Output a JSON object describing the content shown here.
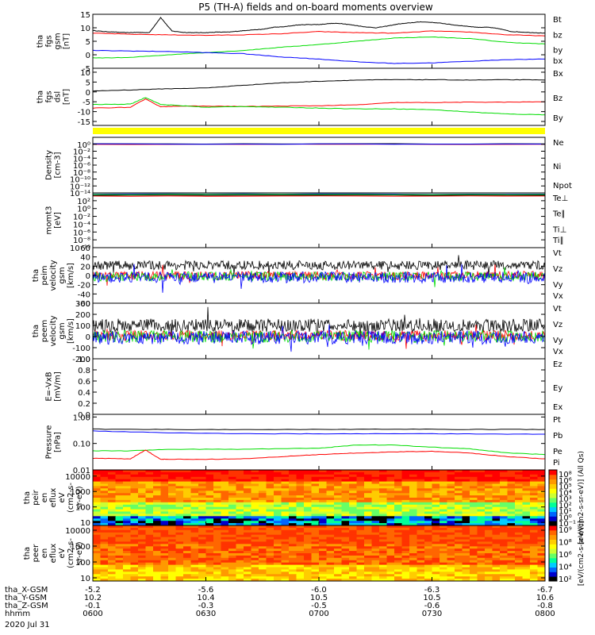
{
  "chart_data": {
    "type": "line",
    "title": "P5 (TH-A) fields and on-board moments overview",
    "colors": {
      "black": "#000000",
      "red": "#ff0000",
      "green": "#00dd00",
      "blue": "#0000ff",
      "yellow": "#ffff00"
    },
    "panels": [
      {
        "id": "fgs_gsm",
        "ylabel": [
          "tha",
          "fgs",
          "gsm",
          "[nT]"
        ],
        "ylim": [
          -5,
          15
        ],
        "yticks": [
          "15",
          "10",
          "5",
          "0",
          "-5"
        ],
        "ytick_values": [
          15,
          10,
          5,
          0,
          -5
        ],
        "legend": [
          {
            "name": "Bt",
            "color": "black"
          },
          {
            "name": "bz",
            "color": "red"
          },
          {
            "name": "by",
            "color": "green"
          },
          {
            "name": "bx",
            "color": "blue"
          }
        ],
        "series": [
          {
            "name": "Bt",
            "color": "black",
            "x": [
              0,
              3,
              6,
              9,
              12,
              15,
              18,
              21,
              24,
              27,
              30,
              33,
              36,
              39,
              42,
              45,
              48,
              51,
              54,
              57,
              60,
              63,
              66,
              69,
              72,
              75,
              78,
              81,
              84,
              87,
              90,
              93,
              96,
              99,
              102,
              105,
              108,
              111,
              114,
              117,
              120
            ],
            "values": [
              9,
              8.6,
              8.4,
              8.2,
              8.3,
              8.2,
              13.8,
              8.8,
              8.3,
              8.2,
              8.2,
              8.4,
              8.4,
              8.8,
              9.2,
              9.4,
              10.2,
              10.4,
              11,
              11.2,
              11.2,
              11.6,
              11.6,
              11,
              10.4,
              10,
              10.6,
              11.4,
              11.8,
              12.2,
              12,
              11.6,
              11,
              10.6,
              10.2,
              10.2,
              9.6,
              8.6,
              8.4,
              8.2,
              8
            ]
          },
          {
            "name": "bz",
            "color": "red",
            "x": [
              0,
              10,
              20,
              30,
              40,
              50,
              60,
              70,
              80,
              90,
              100,
              110,
              120
            ],
            "values": [
              8,
              7.6,
              7.4,
              7.2,
              7.4,
              7.8,
              8.6,
              8.2,
              8,
              8.8,
              8.4,
              7.4,
              7
            ]
          },
          {
            "name": "by",
            "color": "green",
            "x": [
              0,
              10,
              20,
              30,
              40,
              50,
              60,
              70,
              80,
              90,
              100,
              110,
              120
            ],
            "values": [
              -1.2,
              -1,
              0,
              0.8,
              1.6,
              2.8,
              3.8,
              5,
              6.2,
              6.6,
              6,
              4.6,
              4
            ]
          },
          {
            "name": "bx",
            "color": "blue",
            "x": [
              0,
              10,
              20,
              30,
              40,
              50,
              60,
              70,
              80,
              90,
              100,
              110,
              120
            ],
            "values": [
              1.6,
              1.4,
              1.2,
              0.8,
              0.4,
              -0.8,
              -1.6,
              -2.6,
              -3.2,
              -3,
              -2.4,
              -1.8,
              -1.6
            ]
          }
        ]
      },
      {
        "id": "fgs_dsl",
        "ylabel": [
          "tha",
          "fgs",
          "dsl",
          "[nT]"
        ],
        "ylim": [
          -17,
          12
        ],
        "yticks": [
          "10",
          "5",
          "0",
          "-5",
          "-10",
          "-15"
        ],
        "ytick_values": [
          10,
          5,
          0,
          -5,
          -10,
          -15
        ],
        "legend": [
          {
            "name": "Bx",
            "color": "black"
          },
          {
            "name": "Bz",
            "color": "red"
          },
          {
            "name": "By",
            "color": "green"
          }
        ],
        "series": [
          {
            "name": "Bx",
            "color": "black",
            "x": [
              0,
              10,
              20,
              30,
              40,
              50,
              60,
              70,
              80,
              90,
              100,
              110,
              120
            ],
            "values": [
              0.5,
              1,
              1.6,
              2,
              3.4,
              4.6,
              5.4,
              6,
              6.2,
              6.2,
              6,
              6.2,
              6
            ]
          },
          {
            "name": "Bz",
            "color": "red",
            "x": [
              0,
              10,
              14,
              18,
              22,
              30,
              40,
              50,
              60,
              70,
              80,
              90,
              100,
              110,
              120
            ],
            "values": [
              -8.2,
              -7.8,
              -3.5,
              -7.6,
              -7.2,
              -7.2,
              -7.4,
              -7.2,
              -7,
              -6.6,
              -5.4,
              -5.4,
              -5.2,
              -5.2,
              -5
            ]
          },
          {
            "name": "By",
            "color": "green",
            "x": [
              0,
              10,
              14,
              18,
              22,
              30,
              40,
              50,
              60,
              70,
              80,
              90,
              100,
              110,
              120
            ],
            "values": [
              -6.4,
              -6.2,
              -2.8,
              -6.4,
              -6.8,
              -7.8,
              -7.4,
              -7.8,
              -8.2,
              -8.6,
              -8.6,
              -9,
              -10.2,
              -11.2,
              -11.6
            ]
          }
        ]
      },
      {
        "id": "density",
        "ylabel": [
          "Density",
          "[cm-3]"
        ],
        "ylim": [
          -14,
          2
        ],
        "log": true,
        "yticks": [
          "10⁰",
          "10⁻²",
          "10⁻⁴",
          "10⁻⁶",
          "10⁻⁸",
          "10⁻¹⁰",
          "10⁻¹²",
          "10⁻¹⁴"
        ],
        "ytick_values": [
          0,
          -2,
          -4,
          -6,
          -8,
          -10,
          -12,
          -14
        ],
        "legend": [
          {
            "name": "Ne",
            "color": "red"
          },
          {
            "name": "Ni",
            "color": "black"
          },
          {
            "name": "Npot",
            "color": "blue"
          }
        ],
        "series": [
          {
            "name": "Ne",
            "color": "red",
            "x": [
              0,
              120
            ],
            "values": [
              0,
              0
            ]
          },
          {
            "name": "Ni",
            "color": "black",
            "x": [
              0,
              120
            ],
            "values": [
              0.1,
              0.1
            ]
          },
          {
            "name": "Npot",
            "color": "blue",
            "x": [
              0,
              120
            ],
            "values": [
              0.05,
              0.05
            ]
          }
        ]
      },
      {
        "id": "momt3",
        "ylabel": [
          "momt3",
          "[eV]"
        ],
        "ylim": [
          -10,
          4
        ],
        "log": true,
        "yticks": [
          "10²",
          "10⁰",
          "10⁻²",
          "10⁻⁴",
          "10⁻⁶",
          "10⁻⁸",
          "10⁻¹⁰"
        ],
        "ytick_values": [
          2,
          0,
          -2,
          -4,
          -6,
          -8,
          -10
        ],
        "legend": [
          {
            "name": "Te⊥",
            "color": "red"
          },
          {
            "name": "Te∥",
            "color": "black"
          },
          {
            "name": "Ti⊥",
            "color": "blue"
          },
          {
            "name": "Ti∥",
            "color": "green"
          }
        ],
        "series": [
          {
            "name": "Te⊥",
            "color": "red",
            "x": [
              0,
              120
            ],
            "values": [
              3.2,
              3.2
            ]
          },
          {
            "name": "Te∥",
            "color": "black",
            "x": [
              0,
              120
            ],
            "values": [
              3.4,
              3.4
            ]
          },
          {
            "name": "Ti⊥",
            "color": "blue",
            "x": [
              0,
              120
            ],
            "values": [
              3.7,
              3.7
            ]
          },
          {
            "name": "Ti∥",
            "color": "green",
            "x": [
              0,
              120
            ],
            "values": [
              3.6,
              3.6
            ]
          }
        ]
      },
      {
        "id": "peim_vel",
        "ylabel": [
          "tha",
          "peim",
          "velocity",
          "gsm",
          "[km/s]"
        ],
        "ylim": [
          -60,
          60
        ],
        "yticks": [
          "60",
          "40",
          "20",
          "0",
          "-20",
          "-40",
          "-60"
        ],
        "ytick_values": [
          60,
          40,
          20,
          0,
          -20,
          -40,
          -60
        ],
        "legend": [
          {
            "name": "Vt",
            "color": "black"
          },
          {
            "name": "Vz",
            "color": "red"
          },
          {
            "name": "Vy",
            "color": "green"
          },
          {
            "name": "Vx",
            "color": "blue"
          }
        ],
        "noise": [
          {
            "name": "Vt",
            "color": "black",
            "center": 22,
            "amp": 10
          },
          {
            "name": "Vz",
            "color": "red",
            "center": 0,
            "amp": 9
          },
          {
            "name": "Vy",
            "color": "green",
            "center": -2,
            "amp": 10
          },
          {
            "name": "Vx",
            "color": "blue",
            "center": -4,
            "amp": 12
          }
        ]
      },
      {
        "id": "peem_vel",
        "ylabel": [
          "tha",
          "peem",
          "velocity",
          "gsm",
          "[km/s]"
        ],
        "ylim": [
          -200,
          300
        ],
        "yticks": [
          "300",
          "200",
          "100",
          "0",
          "-100",
          "-200"
        ],
        "ytick_values": [
          300,
          200,
          100,
          0,
          -100,
          -200
        ],
        "legend": [
          {
            "name": "Vt",
            "color": "black"
          },
          {
            "name": "Vz",
            "color": "red"
          },
          {
            "name": "Vy",
            "color": "green"
          },
          {
            "name": "Vx",
            "color": "blue"
          }
        ],
        "noise": [
          {
            "name": "Vt",
            "color": "black",
            "center": 100,
            "amp": 60
          },
          {
            "name": "Vz",
            "color": "red",
            "center": 10,
            "amp": 45
          },
          {
            "name": "Vy",
            "color": "green",
            "center": 0,
            "amp": 55
          },
          {
            "name": "Vx",
            "color": "blue",
            "center": -10,
            "amp": 60
          }
        ]
      },
      {
        "id": "efield",
        "ylabel": [
          "E=-VxB",
          "[mV/m]"
        ],
        "ylim": [
          0,
          1
        ],
        "yticks": [
          "1.0",
          "0.8",
          "0.6",
          "0.4",
          "0.2",
          "0.0"
        ],
        "ytick_values": [
          1,
          0.8,
          0.6,
          0.4,
          0.2,
          0
        ],
        "legend": [
          {
            "name": "Ez",
            "color": "red"
          },
          {
            "name": "Ey",
            "color": "green"
          },
          {
            "name": "Ex",
            "color": "blue"
          }
        ],
        "series": []
      },
      {
        "id": "pressure",
        "ylabel": [
          "Pressure",
          "[nPa]"
        ],
        "ylim": [
          -2,
          0.1
        ],
        "log": true,
        "yticks": [
          "1.00",
          "0.10",
          "0.01"
        ],
        "ytick_values": [
          0,
          -1,
          -2
        ],
        "legend": [
          {
            "name": "Pt",
            "color": "black"
          },
          {
            "name": "Pb",
            "color": "red"
          },
          {
            "name": "Pe",
            "color": "green"
          },
          {
            "name": "Pi",
            "color": "blue"
          }
        ],
        "series": [
          {
            "name": "Pt",
            "color": "black",
            "x": [
              0,
              20,
              40,
              60,
              80,
              100,
              120
            ],
            "values": [
              -0.46,
              -0.47,
              -0.48,
              -0.47,
              -0.46,
              -0.47,
              -0.47
            ]
          },
          {
            "name": "Pi",
            "color": "blue",
            "x": [
              0,
              20,
              40,
              60,
              80,
              100,
              120
            ],
            "values": [
              -0.53,
              -0.6,
              -0.63,
              -0.64,
              -0.63,
              -0.64,
              -0.65
            ]
          },
          {
            "name": "Pe",
            "color": "green",
            "x": [
              0,
              10,
              20,
              40,
              60,
              70,
              80,
              90,
              100,
              110,
              120
            ],
            "values": [
              -1.28,
              -1.28,
              -1.22,
              -1.22,
              -1.18,
              -1.06,
              -1.06,
              -1.14,
              -1.2,
              -1.36,
              -1.42
            ]
          },
          {
            "name": "Pb",
            "color": "red",
            "x": [
              0,
              10,
              14,
              18,
              20,
              30,
              40,
              50,
              60,
              70,
              80,
              90,
              100,
              110,
              120
            ],
            "values": [
              -1.56,
              -1.58,
              -1.25,
              -1.6,
              -1.6,
              -1.6,
              -1.58,
              -1.5,
              -1.42,
              -1.36,
              -1.32,
              -1.3,
              -1.36,
              -1.5,
              -1.58
            ]
          }
        ]
      },
      {
        "id": "peir",
        "ylabel": [
          "tha",
          "peir",
          "en",
          "eflux",
          "eV",
          "(cm2-s-",
          "sr-eV)"
        ],
        "type": "heatmap",
        "log": true,
        "ylim": [
          0.8,
          4.4
        ],
        "yticks": [
          "10000",
          "1000",
          "100",
          "10"
        ],
        "ytick_values": [
          4,
          3,
          2,
          1
        ]
      },
      {
        "id": "peer",
        "ylabel": [
          "tha",
          "peer",
          "en",
          "eflux",
          "eV",
          "(cm2-s-",
          "sr-eV)"
        ],
        "type": "heatmap",
        "log": true,
        "ylim": [
          0.8,
          4.3
        ],
        "yticks": [
          "10000",
          "1000",
          "100",
          "10"
        ],
        "ytick_values": [
          4,
          3,
          2,
          1
        ]
      }
    ],
    "colorbars": [
      {
        "label": "[eV/(cm2-s-sr-eV)] (All Qs)",
        "ticks": [
          "10⁸",
          "10⁶",
          "10⁵",
          "10⁴",
          "10³",
          "10²",
          "10¹",
          "10⁰",
          "10⁻¹"
        ]
      },
      {
        "label": "[eV/(cm2-s-sr-eV)]",
        "ticks": [
          "10⁹",
          "10⁸",
          "10⁶",
          "10⁴",
          "10²"
        ]
      }
    ],
    "x_axis": {
      "range_minutes": [
        0,
        120
      ],
      "tick_minutes": [
        0,
        30,
        60,
        90,
        120
      ],
      "rows": [
        {
          "label": "tha_X-GSM",
          "values": [
            "-5.2",
            "-5.6",
            "-6.0",
            "-6.3",
            "-6.7"
          ]
        },
        {
          "label": "tha_Y-GSM",
          "values": [
            "10.2",
            "10.4",
            "10.5",
            "10.5",
            "10.6"
          ]
        },
        {
          "label": "tha_Z-GSM",
          "values": [
            "-0.1",
            "-0.3",
            "-0.5",
            "-0.6",
            "-0.8"
          ]
        },
        {
          "label": "hhmm",
          "values": [
            "0600",
            "0630",
            "0700",
            "0730",
            "0800"
          ]
        }
      ],
      "date": "2020 Jul 31"
    }
  }
}
